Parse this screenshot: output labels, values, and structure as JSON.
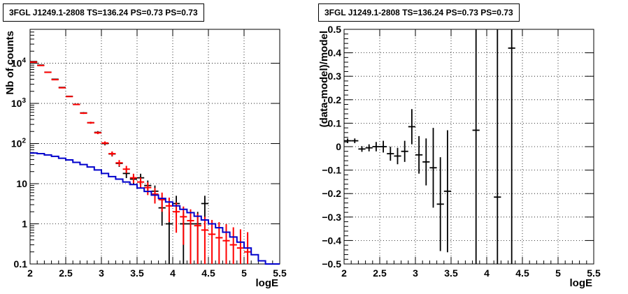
{
  "chart_data": [
    {
      "type": "scatter",
      "title": "3FGL J1249.1-2808 TS=136.24 PS=0.73 PS=0.73",
      "xlabel": "logE",
      "ylabel": "Nb of counts",
      "xlim": [
        2,
        5.5
      ],
      "ylim": [
        0.1,
        70000
      ],
      "ylog": true,
      "grid": true,
      "x_ticks": [
        "2",
        "2.5",
        "3",
        "3.5",
        "4",
        "4.5",
        "5",
        "5.5"
      ],
      "y_ticks": [
        "0.1",
        "1",
        "10",
        "10^2",
        "10^3",
        "10^4"
      ],
      "series": [
        {
          "color": "#000000",
          "kind": "points",
          "x": [
            2.05,
            2.15,
            2.25,
            2.35,
            2.45,
            2.55,
            2.65,
            2.75,
            2.85,
            2.95,
            3.05,
            3.15,
            3.25,
            3.35,
            3.45,
            3.55,
            3.65,
            3.75,
            3.85,
            3.95,
            4.05,
            4.15,
            4.25,
            4.35,
            4.45
          ],
          "y": [
            11000,
            9000,
            6000,
            4000,
            2500,
            1500,
            950,
            580,
            330,
            190,
            100,
            55,
            32,
            18,
            13,
            14,
            9,
            6.5,
            2.5,
            1,
            3.2,
            1,
            1,
            1,
            3.2
          ],
          "yerr": [
            105,
            95,
            77,
            63,
            50,
            39,
            31,
            24,
            18,
            14,
            10,
            7.4,
            5.7,
            4.2,
            3.6,
            3.7,
            3,
            2.5,
            1.6,
            0.99,
            1.8,
            0.99,
            0.99,
            0.99,
            1.8
          ]
        },
        {
          "color": "#ff0000",
          "kind": "model",
          "x": [
            2.05,
            2.15,
            2.25,
            2.35,
            2.45,
            2.55,
            2.65,
            2.75,
            2.85,
            2.95,
            3.05,
            3.15,
            3.25,
            3.35,
            3.45,
            3.55,
            3.65,
            3.75,
            3.85,
            3.95,
            4.05,
            4.15,
            4.25,
            4.35,
            4.45,
            4.55,
            4.65,
            4.75,
            4.85,
            4.95,
            5.05
          ],
          "y": [
            10700,
            8800,
            5950,
            3900,
            2450,
            1480,
            940,
            570,
            330,
            185,
            103,
            56,
            33,
            23,
            14,
            11,
            8,
            5.5,
            4,
            2.8,
            2,
            1.5,
            1.2,
            0.9,
            0.7,
            0.55,
            0.45,
            0.38,
            0.3,
            0.25,
            0.2
          ],
          "yerr": [
            103,
            94,
            77,
            62,
            49,
            38,
            31,
            24,
            18,
            13.6,
            10,
            7.5,
            5.7,
            4.8,
            3.7,
            3.3,
            2.8,
            2.3,
            2,
            1.7,
            1.4,
            1.2,
            1.1,
            0.9,
            0.8,
            0.7,
            0.65,
            0.6,
            0.52,
            0.48,
            0.42
          ]
        },
        {
          "color": "#0000cc",
          "kind": "step",
          "x": [
            2.0,
            2.1,
            2.2,
            2.3,
            2.4,
            2.5,
            2.6,
            2.7,
            2.8,
            2.9,
            3.0,
            3.1,
            3.2,
            3.3,
            3.4,
            3.5,
            3.6,
            3.7,
            3.8,
            3.9,
            4.0,
            4.1,
            4.2,
            4.3,
            4.4,
            4.5,
            4.6,
            4.7,
            4.8,
            4.9,
            5.0,
            5.1,
            5.2,
            5.3,
            5.4
          ],
          "y": [
            58,
            56,
            52,
            48,
            43,
            39,
            34,
            30,
            26,
            22,
            18,
            15,
            13,
            11,
            9.5,
            7.8,
            6.4,
            5.2,
            4.3,
            3.5,
            2.8,
            2.3,
            1.9,
            1.55,
            1.25,
            1.0,
            0.8,
            0.62,
            0.47,
            0.35,
            0.25,
            0.17,
            0.12,
            0.1,
            0.1
          ]
        }
      ]
    },
    {
      "type": "scatter",
      "title": "3FGL J1249.1-2808 TS=136.24 PS=0.73 PS=0.73",
      "xlabel": "logE",
      "ylabel": "(data-model)/model",
      "xlim": [
        2,
        5.5
      ],
      "ylim": [
        -0.5,
        0.5
      ],
      "grid": true,
      "x_ticks": [
        "2",
        "2.5",
        "3",
        "3.5",
        "4",
        "4.5",
        "5",
        "5.5"
      ],
      "y_ticks": [
        "−0.5",
        "−0.4",
        "−0.3",
        "−0.2",
        "−0.1",
        "0",
        "0.1",
        "0.2",
        "0.3",
        "0.4",
        "0.5"
      ],
      "series": [
        {
          "color": "#000000",
          "kind": "points",
          "x": [
            2.05,
            2.15,
            2.25,
            2.35,
            2.45,
            2.55,
            2.65,
            2.75,
            2.85,
            2.95,
            3.05,
            3.15,
            3.25,
            3.35,
            3.45,
            3.85,
            4.15,
            4.35
          ],
          "y": [
            0.025,
            0.025,
            -0.01,
            -0.005,
            0.0,
            0.0,
            -0.03,
            -0.04,
            -0.02,
            0.085,
            -0.035,
            -0.065,
            -0.09,
            -0.245,
            -0.19,
            0.07,
            -0.215,
            0.42
          ],
          "yerr": [
            0.01,
            0.01,
            0.012,
            0.015,
            0.02,
            0.025,
            0.03,
            0.035,
            0.045,
            0.075,
            0.08,
            0.1,
            0.17,
            0.2,
            0.26,
            1.0,
            1.0,
            1.0
          ]
        }
      ]
    }
  ]
}
